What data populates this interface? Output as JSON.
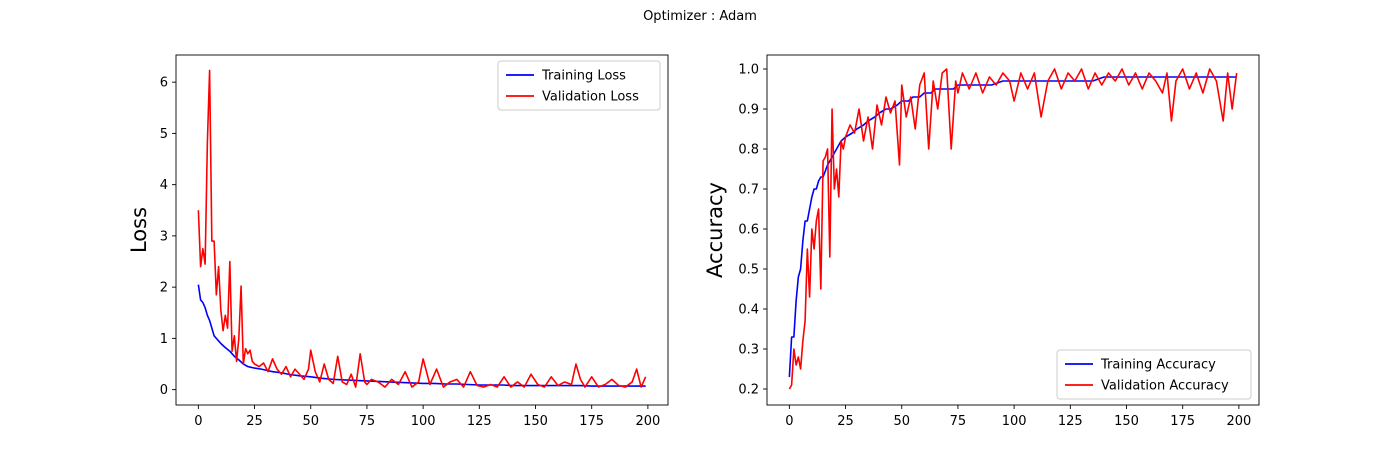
{
  "figure": {
    "suptitle": "Optimizer : Adam"
  },
  "chart_data": [
    {
      "type": "line",
      "title": "",
      "xlabel": "",
      "ylabel": "Loss",
      "xlim": [
        -9.95,
        208.95
      ],
      "ylim": [
        -0.3,
        6.53
      ],
      "xticks": [
        0,
        25,
        50,
        75,
        100,
        125,
        150,
        175,
        200
      ],
      "yticks": [
        0,
        1,
        2,
        3,
        4,
        5,
        6
      ],
      "grid": false,
      "legend": "top-right",
      "series": [
        {
          "name": "Training Loss",
          "color": "#0000ff",
          "x": [
            0,
            1,
            2,
            3,
            4,
            5,
            6,
            7,
            8,
            9,
            10,
            12,
            14,
            16,
            18,
            20,
            22,
            25,
            28,
            30,
            33,
            35,
            38,
            40,
            45,
            50,
            55,
            60,
            65,
            70,
            75,
            80,
            85,
            90,
            95,
            100,
            105,
            110,
            115,
            120,
            125,
            130,
            135,
            140,
            145,
            150,
            155,
            160,
            165,
            170,
            175,
            180,
            185,
            190,
            195,
            199
          ],
          "y": [
            2.05,
            1.75,
            1.7,
            1.6,
            1.45,
            1.35,
            1.2,
            1.05,
            1.0,
            0.95,
            0.9,
            0.82,
            0.75,
            0.65,
            0.58,
            0.5,
            0.45,
            0.42,
            0.4,
            0.38,
            0.35,
            0.34,
            0.32,
            0.3,
            0.27,
            0.25,
            0.22,
            0.2,
            0.19,
            0.18,
            0.17,
            0.16,
            0.15,
            0.14,
            0.13,
            0.12,
            0.12,
            0.11,
            0.11,
            0.1,
            0.09,
            0.09,
            0.09,
            0.08,
            0.08,
            0.08,
            0.08,
            0.08,
            0.08,
            0.08,
            0.07,
            0.07,
            0.07,
            0.07,
            0.07,
            0.07
          ]
        },
        {
          "name": "Validation Loss",
          "color": "#ff0000",
          "x": [
            0,
            1,
            2,
            3,
            4,
            5,
            6,
            7,
            8,
            9,
            10,
            11,
            12,
            13,
            14,
            15,
            16,
            17,
            18,
            19,
            20,
            21,
            22,
            23,
            24,
            25,
            27,
            29,
            31,
            33,
            35,
            37,
            39,
            41,
            43,
            45,
            47,
            49,
            50,
            52,
            54,
            56,
            58,
            60,
            62,
            64,
            66,
            68,
            70,
            72,
            74,
            75,
            77,
            80,
            83,
            86,
            89,
            92,
            95,
            98,
            100,
            103,
            106,
            109,
            112,
            115,
            118,
            121,
            124,
            127,
            130,
            133,
            136,
            139,
            142,
            145,
            148,
            151,
            154,
            157,
            160,
            163,
            166,
            168,
            170,
            172,
            175,
            178,
            181,
            184,
            187,
            190,
            193,
            195,
            197,
            199
          ],
          "y": [
            3.5,
            2.4,
            2.75,
            2.45,
            4.8,
            6.23,
            2.9,
            2.9,
            1.85,
            2.4,
            1.55,
            1.15,
            1.45,
            1.2,
            2.5,
            0.75,
            1.05,
            0.55,
            1.0,
            2.02,
            0.5,
            0.8,
            0.7,
            0.77,
            0.55,
            0.5,
            0.45,
            0.52,
            0.35,
            0.6,
            0.4,
            0.3,
            0.45,
            0.25,
            0.4,
            0.3,
            0.2,
            0.4,
            0.77,
            0.35,
            0.15,
            0.5,
            0.2,
            0.12,
            0.65,
            0.15,
            0.1,
            0.3,
            0.05,
            0.7,
            0.15,
            0.1,
            0.2,
            0.15,
            0.05,
            0.2,
            0.1,
            0.35,
            0.05,
            0.15,
            0.6,
            0.1,
            0.4,
            0.05,
            0.15,
            0.2,
            0.05,
            0.35,
            0.08,
            0.05,
            0.1,
            0.05,
            0.25,
            0.05,
            0.15,
            0.05,
            0.3,
            0.1,
            0.05,
            0.25,
            0.08,
            0.15,
            0.1,
            0.5,
            0.2,
            0.05,
            0.25,
            0.05,
            0.1,
            0.2,
            0.08,
            0.05,
            0.15,
            0.4,
            0.05,
            0.25
          ]
        }
      ]
    },
    {
      "type": "line",
      "title": "",
      "xlabel": "",
      "ylabel": "Accuracy",
      "xlim": [
        -9.95,
        208.95
      ],
      "ylim": [
        0.16,
        1.035
      ],
      "xticks": [
        0,
        25,
        50,
        75,
        100,
        125,
        150,
        175,
        200
      ],
      "yticks": [
        0.2,
        0.3,
        0.4,
        0.5,
        0.6,
        0.7,
        0.8,
        0.9,
        1.0
      ],
      "grid": false,
      "legend": "bottom-right",
      "series": [
        {
          "name": "Training Accuracy",
          "color": "#0000ff",
          "x": [
            0,
            1,
            2,
            3,
            4,
            5,
            6,
            7,
            8,
            9,
            10,
            11,
            12,
            13,
            14,
            15,
            17,
            19,
            21,
            23,
            25,
            28,
            30,
            33,
            35,
            38,
            40,
            43,
            45,
            48,
            50,
            53,
            55,
            58,
            60,
            63,
            65,
            68,
            70,
            73,
            75,
            78,
            80,
            85,
            90,
            95,
            100,
            105,
            110,
            115,
            120,
            125,
            130,
            135,
            140,
            145,
            150,
            155,
            160,
            165,
            170,
            175,
            180,
            185,
            190,
            195,
            199
          ],
          "y": [
            0.23,
            0.33,
            0.33,
            0.42,
            0.48,
            0.5,
            0.57,
            0.62,
            0.62,
            0.65,
            0.68,
            0.7,
            0.7,
            0.72,
            0.73,
            0.73,
            0.76,
            0.78,
            0.8,
            0.82,
            0.83,
            0.84,
            0.85,
            0.86,
            0.87,
            0.88,
            0.89,
            0.9,
            0.9,
            0.91,
            0.92,
            0.92,
            0.93,
            0.93,
            0.94,
            0.94,
            0.95,
            0.95,
            0.95,
            0.95,
            0.96,
            0.96,
            0.96,
            0.96,
            0.96,
            0.97,
            0.97,
            0.97,
            0.97,
            0.97,
            0.97,
            0.97,
            0.97,
            0.97,
            0.98,
            0.98,
            0.98,
            0.98,
            0.98,
            0.98,
            0.98,
            0.98,
            0.98,
            0.98,
            0.98,
            0.98,
            0.98
          ]
        },
        {
          "name": "Validation Accuracy",
          "color": "#ff0000",
          "x": [
            0,
            1,
            2,
            3,
            4,
            5,
            6,
            7,
            8,
            9,
            10,
            11,
            12,
            13,
            14,
            15,
            16,
            17,
            18,
            19,
            20,
            21,
            22,
            23,
            24,
            25,
            27,
            29,
            31,
            33,
            35,
            37,
            39,
            41,
            43,
            45,
            47,
            49,
            50,
            52,
            54,
            56,
            58,
            60,
            62,
            64,
            66,
            68,
            70,
            72,
            74,
            75,
            77,
            80,
            83,
            86,
            89,
            92,
            95,
            98,
            100,
            103,
            106,
            109,
            112,
            115,
            118,
            121,
            124,
            127,
            130,
            133,
            136,
            139,
            142,
            145,
            148,
            151,
            154,
            157,
            160,
            163,
            166,
            168,
            170,
            172,
            175,
            178,
            181,
            184,
            187,
            190,
            193,
            195,
            197,
            199
          ],
          "y": [
            0.2,
            0.21,
            0.3,
            0.26,
            0.28,
            0.25,
            0.32,
            0.37,
            0.55,
            0.43,
            0.6,
            0.55,
            0.62,
            0.65,
            0.45,
            0.77,
            0.78,
            0.8,
            0.53,
            0.9,
            0.7,
            0.75,
            0.68,
            0.82,
            0.8,
            0.83,
            0.86,
            0.84,
            0.9,
            0.82,
            0.88,
            0.8,
            0.91,
            0.86,
            0.93,
            0.89,
            0.92,
            0.76,
            0.96,
            0.88,
            0.93,
            0.85,
            0.96,
            0.99,
            0.8,
            0.97,
            0.9,
            0.99,
            1.0,
            0.8,
            0.97,
            0.94,
            0.99,
            0.95,
            0.99,
            0.94,
            0.98,
            0.96,
            0.99,
            0.97,
            0.92,
            0.99,
            0.95,
            0.99,
            0.88,
            0.97,
            1.0,
            0.95,
            0.99,
            0.97,
            1.0,
            0.95,
            0.99,
            0.96,
            0.99,
            0.97,
            1.0,
            0.96,
            0.99,
            0.95,
            0.99,
            0.97,
            0.94,
            0.99,
            0.87,
            0.97,
            1.0,
            0.95,
            0.99,
            0.94,
            1.0,
            0.97,
            0.87,
            0.99,
            0.9,
            0.99
          ]
        }
      ]
    }
  ]
}
